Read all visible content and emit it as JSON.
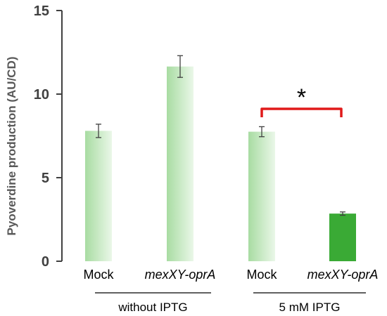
{
  "chart_data": {
    "type": "bar",
    "ylabel": "Pyoverdine production (AU/CD)",
    "ylim": [
      0,
      15
    ],
    "yticks": [
      "0",
      "5",
      "10",
      "15"
    ],
    "grid": false,
    "categories": [
      {
        "label": "Mock",
        "italic": false
      },
      {
        "label": "mexXY-oprA",
        "italic": true
      },
      {
        "label": "Mock",
        "italic": false
      },
      {
        "label": "mexXY-oprA",
        "italic": true
      }
    ],
    "values": [
      7.8,
      11.65,
      7.75,
      2.85
    ],
    "errors": [
      0.4,
      0.65,
      0.3,
      0.1
    ],
    "bar_styles": [
      "gradient",
      "gradient",
      "gradient",
      "solid"
    ],
    "groups": [
      {
        "label": "without IPTG",
        "categories": [
          0,
          1
        ]
      },
      {
        "label": "5 mM IPTG",
        "categories": [
          2,
          3
        ]
      }
    ],
    "significance": {
      "between": [
        2,
        3
      ],
      "label": "*"
    },
    "colors": {
      "bar_light": "#a8dca2",
      "bar_fade": "#eaf7e8",
      "bar_solid": "#3aaa35",
      "bracket": "#e01a1a",
      "axis": "#404040",
      "error": "#404040"
    }
  }
}
